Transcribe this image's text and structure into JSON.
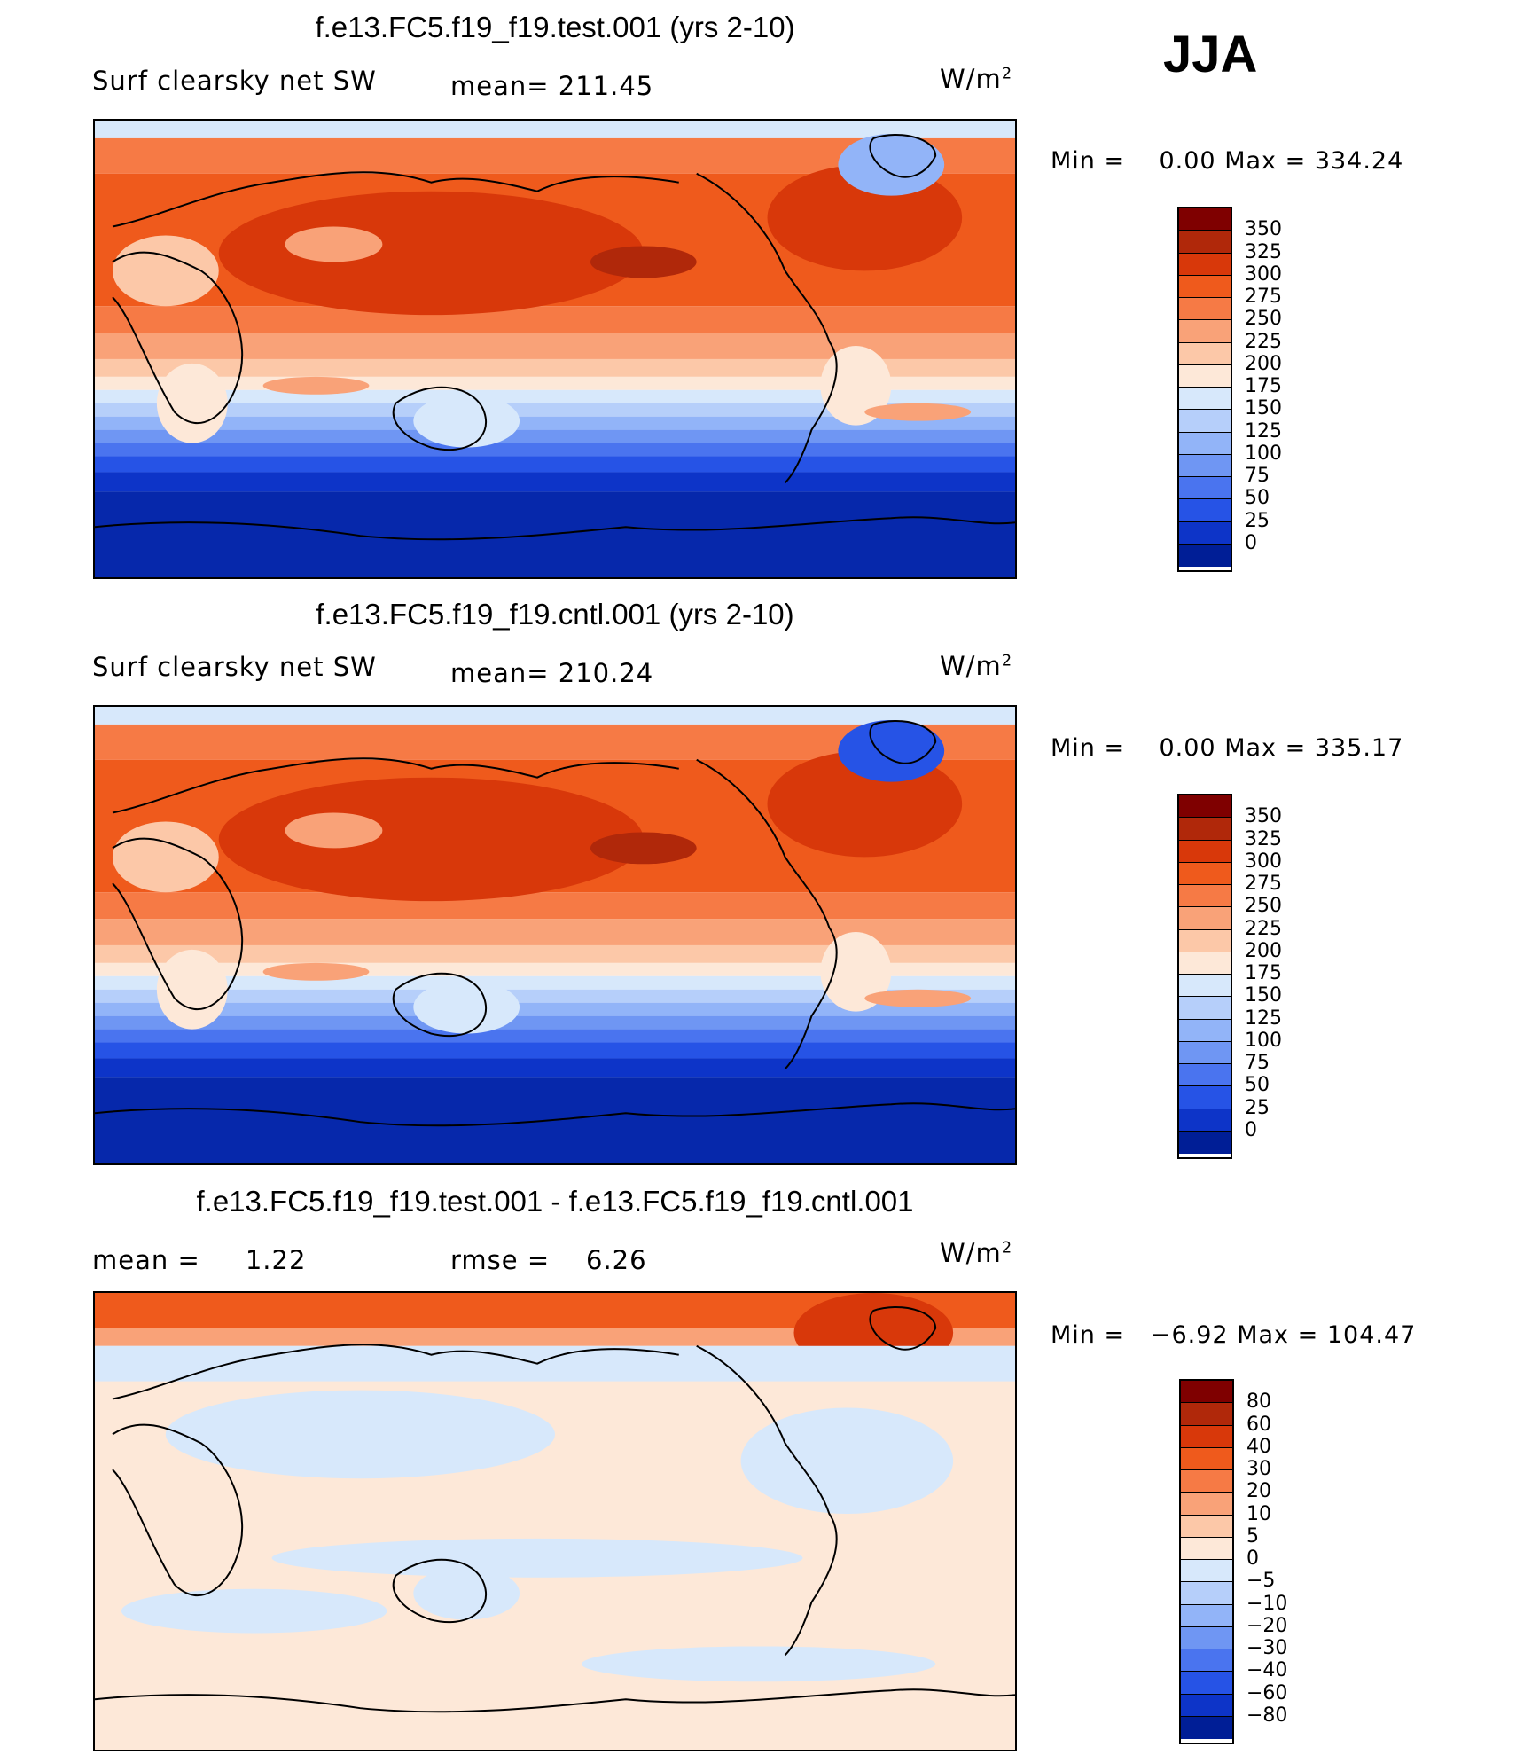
{
  "season": "JJA",
  "panels": [
    {
      "id": "test",
      "title": "f.e13.FC5.f19_f19.test.001 (yrs 2-10)",
      "left_label": "Surf clearsky net SW",
      "center_label": "mean= 211.45",
      "units_base": "W/m",
      "units_exp": "2",
      "min_label": "Min =",
      "min_value": "0.00",
      "max_label": "Max =",
      "max_value": "334.24",
      "legend_labels": [
        "350",
        "325",
        "300",
        "275",
        "250",
        "225",
        "200",
        "175",
        "150",
        "125",
        "100",
        "75",
        "50",
        "25",
        "0"
      ],
      "legend_colors": [
        "#7f0000",
        "#b0280a",
        "#d8380a",
        "#ef5a1c",
        "#f67a45",
        "#f9a278",
        "#fcc8a8",
        "#fde8d8",
        "#d7e8fb",
        "#b6cffa",
        "#92b4f8",
        "#6f96f3",
        "#4a74ef",
        "#2653e6",
        "#0d34c8",
        "#001e96"
      ]
    },
    {
      "id": "cntl",
      "title": "f.e13.FC5.f19_f19.cntl.001 (yrs 2-10)",
      "left_label": "Surf clearsky net SW",
      "center_label": "mean= 210.24",
      "units_base": "W/m",
      "units_exp": "2",
      "min_label": "Min =",
      "min_value": "0.00",
      "max_label": "Max =",
      "max_value": "335.17",
      "legend_labels": [
        "350",
        "325",
        "300",
        "275",
        "250",
        "225",
        "200",
        "175",
        "150",
        "125",
        "100",
        "75",
        "50",
        "25",
        "0"
      ],
      "legend_colors": [
        "#7f0000",
        "#b0280a",
        "#d8380a",
        "#ef5a1c",
        "#f67a45",
        "#f9a278",
        "#fcc8a8",
        "#fde8d8",
        "#d7e8fb",
        "#b6cffa",
        "#92b4f8",
        "#6f96f3",
        "#4a74ef",
        "#2653e6",
        "#0d34c8",
        "#001e96"
      ]
    },
    {
      "id": "diff",
      "title": "f.e13.FC5.f19_f19.test.001 - f.e13.FC5.f19_f19.cntl.001",
      "left_label": "mean =",
      "left_value": "1.22",
      "center_label": "rmse =",
      "center_value": "6.26",
      "units_base": "W/m",
      "units_exp": "2",
      "min_label": "Min =",
      "min_value": "−6.92",
      "max_label": "Max =",
      "max_value": "104.47",
      "legend_labels": [
        "80",
        "60",
        "40",
        "30",
        "20",
        "10",
        "5",
        "0",
        "−5",
        "−10",
        "−20",
        "−30",
        "−40",
        "−60",
        "−80"
      ],
      "legend_colors": [
        "#7f0000",
        "#b0280a",
        "#d8380a",
        "#ef5a1c",
        "#f67a45",
        "#f9a278",
        "#fcc8a8",
        "#fde8d8",
        "#d7e8fb",
        "#b6cffa",
        "#92b4f8",
        "#6f96f3",
        "#4a74ef",
        "#2653e6",
        "#0d34c8",
        "#001e96"
      ]
    }
  ]
}
